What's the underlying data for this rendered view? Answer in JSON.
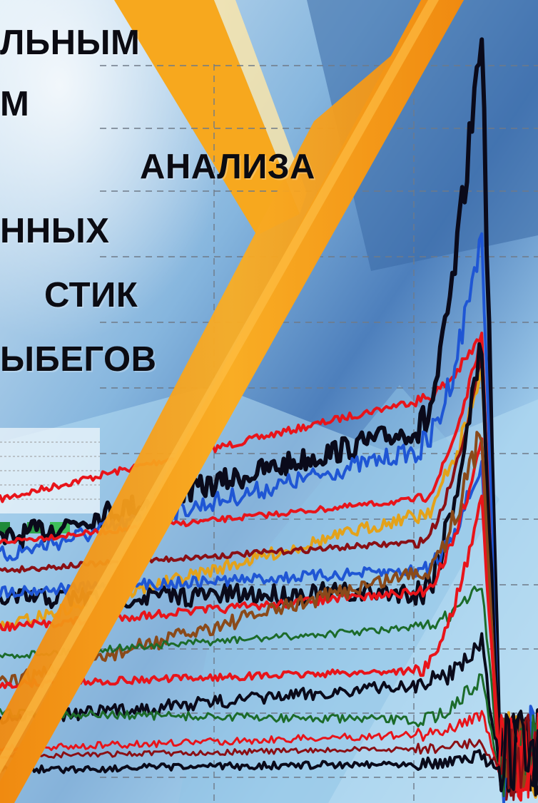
{
  "cover": {
    "title_lines": [
      "ЛЬНЫМ",
      "М",
      "АНАЛИЗА",
      "ННЫХ",
      "СТИК",
      "ЫБЕГОВ"
    ]
  },
  "colors": {
    "background_light": "#cfe6f6",
    "background_mid": "#7fb3dd",
    "background_dark": "#3f6ea8",
    "diagonal_band": "#f7a21b",
    "diagonal_band_light": "#ffd36b",
    "grid": "#7a7a7a",
    "trace_black": "#0a0a1a",
    "trace_red": "#e8141a",
    "trace_blue": "#1f56d4",
    "trace_orange": "#e3a21a",
    "trace_brown": "#8a4a1a",
    "trace_green": "#1c6b2a",
    "trace_darkred": "#8a0f14"
  }
}
